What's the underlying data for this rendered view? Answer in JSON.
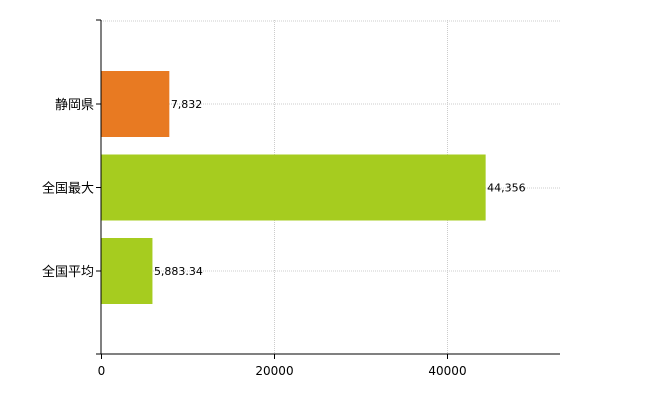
{
  "chart_data": {
    "type": "bar",
    "orientation": "horizontal",
    "categories": [
      "静岡県",
      "全国最大",
      "全国平均"
    ],
    "values": [
      7832,
      44356,
      5883.34
    ],
    "value_labels": [
      "7,832",
      "44,356",
      "5,883.34"
    ],
    "bar_colors": [
      "#e87a22",
      "#a6cc1f",
      "#a6cc1f"
    ],
    "title": "",
    "xlabel": "",
    "ylabel": "",
    "xlim": [
      0,
      53000
    ],
    "xticks": [
      0,
      20000,
      40000
    ],
    "xtick_labels": [
      "0",
      "20000",
      "40000"
    ],
    "grid": true,
    "legend": "none"
  }
}
